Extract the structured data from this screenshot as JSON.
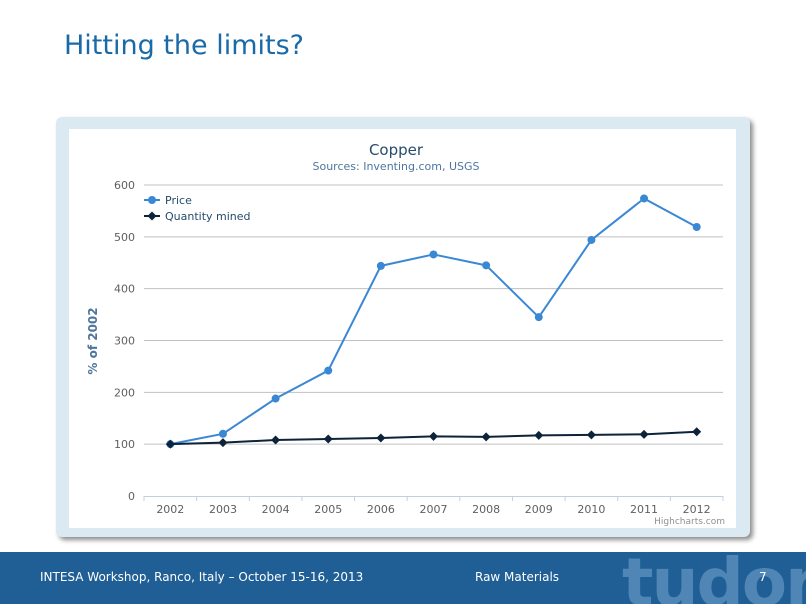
{
  "slide": {
    "title": "Hitting the limits?"
  },
  "footer": {
    "event": "INTESA Workshop, Ranco, Italy – October 15-16, 2013",
    "section": "Raw Materials",
    "page_number": "7",
    "logo_text": "tudor"
  },
  "colors": {
    "title": "#1a6aa8",
    "price": "#3a87d4",
    "quantity": "#0d233a",
    "footer_bg": "#1f5f95",
    "frame": "#dbe9f3"
  },
  "chart_data": {
    "type": "line",
    "title": "Copper",
    "subtitle": "Sources: Inventing.com, USGS",
    "xlabel": "",
    "ylabel": "% of 2002",
    "categories": [
      "2002",
      "2003",
      "2004",
      "2005",
      "2006",
      "2007",
      "2008",
      "2009",
      "2010",
      "2011",
      "2012"
    ],
    "y_ticks": [
      "0",
      "100",
      "200",
      "300",
      "400",
      "500",
      "600"
    ],
    "ylim": [
      0,
      600
    ],
    "grid": true,
    "legend_position": "top-left",
    "credits": "Highcharts.com",
    "series": [
      {
        "name": "Price",
        "marker": "circle",
        "color": "#3a87d4",
        "values": [
          100,
          120,
          188,
          242,
          444,
          466,
          445,
          345,
          494,
          574,
          519
        ]
      },
      {
        "name": "Quantity mined",
        "marker": "diamond",
        "color": "#0d233a",
        "values": [
          100,
          103,
          108,
          110,
          112,
          115,
          114,
          117,
          118,
          119,
          124
        ]
      }
    ]
  }
}
